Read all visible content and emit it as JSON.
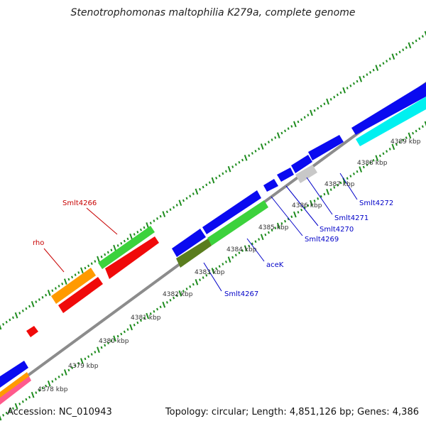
{
  "title": "Stenotrophomonas maltophilia K279a, complete genome",
  "footer": {
    "accession": "Accession: NC_010943",
    "stats": "Topology: circular; Length: 4,851,126 bp; Genes: 4,386"
  },
  "colors": {
    "backbone": "#8c8c8c",
    "ticks": "#1e8c1e",
    "gene_blue": "#0a0af0",
    "gene_green": "#3cd23c",
    "gene_red": "#f00a0a",
    "gene_orange": "#ff9a00",
    "gene_olive": "#5a7d1e",
    "gene_cyan": "#00f0f0",
    "gene_gray": "#c8c8c8",
    "label_blue": "#0000c8",
    "label_red": "#c80000"
  },
  "tick_labels": [
    "4378 kbp",
    "4379 kbp",
    "4380 kbp",
    "4381 kbp",
    "4382 kbp",
    "4383 kbp",
    "4384 kbp",
    "4385 kbp",
    "4386 kbp",
    "4387 kbp",
    "4388 kbp",
    "4389 kbp"
  ],
  "gene_labels": [
    {
      "text": "Smlt4266",
      "color": "red"
    },
    {
      "text": "rho",
      "color": "red"
    },
    {
      "text": "aceK",
      "color": "blue"
    },
    {
      "text": "Smlt4267",
      "color": "blue"
    },
    {
      "text": "Smlt4269",
      "color": "blue"
    },
    {
      "text": "Smlt4270",
      "color": "blue"
    },
    {
      "text": "Smlt4271",
      "color": "blue"
    },
    {
      "text": "Smlt4272",
      "color": "blue"
    }
  ]
}
